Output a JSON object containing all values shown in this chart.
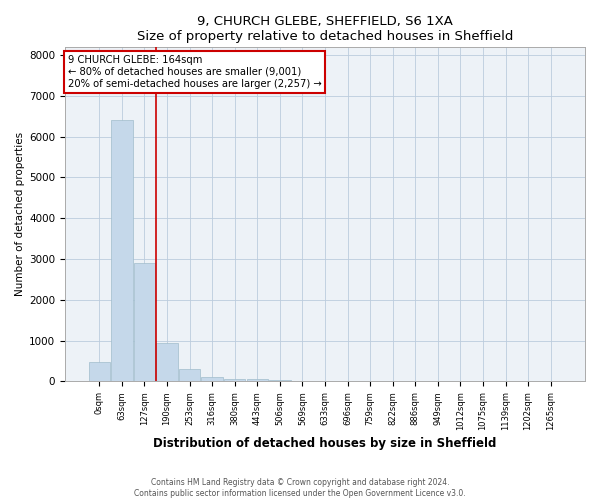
{
  "title": "9, CHURCH GLEBE, SHEFFIELD, S6 1XA",
  "subtitle": "Size of property relative to detached houses in Sheffield",
  "xlabel": "Distribution of detached houses by size in Sheffield",
  "ylabel": "Number of detached properties",
  "bar_labels": [
    "0sqm",
    "63sqm",
    "127sqm",
    "190sqm",
    "253sqm",
    "316sqm",
    "380sqm",
    "443sqm",
    "506sqm",
    "569sqm",
    "633sqm",
    "696sqm",
    "759sqm",
    "822sqm",
    "886sqm",
    "949sqm",
    "1012sqm",
    "1075sqm",
    "1139sqm",
    "1202sqm",
    "1265sqm"
  ],
  "bar_values": [
    480,
    6400,
    2900,
    950,
    310,
    110,
    55,
    50,
    30,
    0,
    0,
    0,
    0,
    0,
    0,
    0,
    0,
    0,
    0,
    0,
    0
  ],
  "bar_color": "#c5d8ea",
  "bar_edge_color": "#a0bccc",
  "vline_x": 2.5,
  "vline_color": "#cc0000",
  "annotation_text": "9 CHURCH GLEBE: 164sqm\n← 80% of detached houses are smaller (9,001)\n20% of semi-detached houses are larger (2,257) →",
  "annotation_box_facecolor": "#ffffff",
  "annotation_box_edgecolor": "#cc0000",
  "ylim": [
    0,
    8200
  ],
  "yticks": [
    0,
    1000,
    2000,
    3000,
    4000,
    5000,
    6000,
    7000,
    8000
  ],
  "footer1": "Contains HM Land Registry data © Crown copyright and database right 2024.",
  "footer2": "Contains public sector information licensed under the Open Government Licence v3.0.",
  "bg_color": "#edf2f7"
}
